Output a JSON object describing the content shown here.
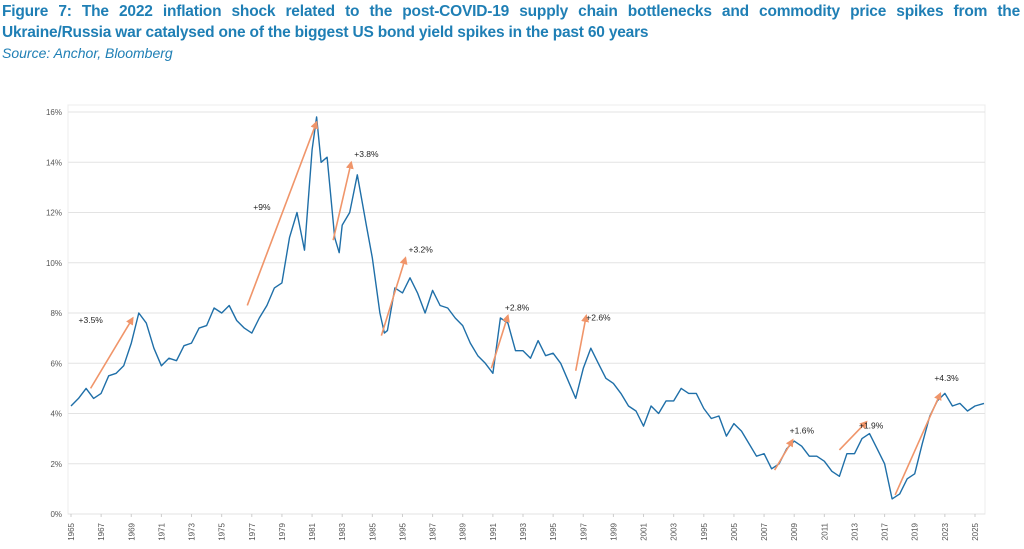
{
  "title": "Figure 7: The 2022 inflation shock related to the post-COVID-19 supply chain bottlenecks and commodity price spikes from the Ukraine/Russia war catalysed one of the biggest US bond yield spikes in the past 60 years",
  "source": "Source: Anchor, Bloomberg",
  "chart_data": {
    "type": "line",
    "title": "",
    "xlabel": "",
    "ylabel": "",
    "xlim": [
      1965,
      2025.7
    ],
    "ylim": [
      0,
      16
    ],
    "grid": "horizontal",
    "legend": "none",
    "colors": {
      "line": "#1f6fa8",
      "arrow": "#f0956a",
      "grid": "#e3e3e3"
    },
    "y_ticks": [
      "0%",
      "2%",
      "4%",
      "6%",
      "8%",
      "10%",
      "12%",
      "14%",
      "16%"
    ],
    "x_tick_labels": [
      "1965",
      "1967",
      "1969",
      "1971",
      "1973",
      "1975",
      "1977",
      "1979",
      "1981",
      "1983",
      "1985",
      "1995",
      "1987",
      "1989",
      "1991",
      "1993",
      "1995",
      "1997",
      "1999",
      "2001",
      "2003",
      "1995",
      "2005",
      "2007",
      "2009",
      "2011",
      "2013",
      "2017",
      "2019",
      "2023",
      "2025"
    ],
    "series": [
      {
        "x": [
          1965,
          1965.5,
          1966,
          1966.5,
          1967,
          1967.5,
          1968,
          1968.5,
          1969,
          1969.5,
          1970,
          1970.5,
          1971,
          1971.5,
          1972,
          1972.5,
          1973,
          1973.5,
          1974,
          1974.5,
          1975,
          1975.5,
          1976,
          1976.5,
          1977,
          1977.5,
          1978,
          1978.5,
          1979,
          1979.5,
          1980,
          1980.5,
          1981,
          1981.3,
          1981.6,
          1982,
          1982.5,
          1982.8,
          1983,
          1983.5,
          1984,
          1984.3,
          1984.6,
          1985,
          1985.5,
          1985.8,
          1986,
          1986.5,
          1987,
          1987.5,
          1988,
          1988.5,
          1989,
          1989.5,
          1990,
          1990.5,
          1991,
          1991.5,
          1992,
          1992.5,
          1993,
          1993.5,
          1994,
          1994.5,
          1995,
          1995.5,
          1996,
          1996.5,
          1997,
          1997.5,
          1998,
          1998.5,
          1999,
          1999.5,
          2000,
          2000.5,
          2001,
          2001.5,
          2002,
          2002.5,
          2003,
          2003.5,
          2004,
          2004.5,
          2005,
          2005.5,
          2006,
          2006.5,
          2007,
          2007.5,
          2008,
          2008.5,
          2009,
          2009.5,
          2010,
          2010.5,
          2011,
          2011.5,
          2012,
          2012.5,
          2013,
          2013.5,
          2014,
          2014.5,
          2015,
          2015.5,
          2016,
          2016.5,
          2017,
          2017.5,
          2018,
          2018.5,
          2019,
          2019.5,
          2020,
          2020.5,
          2021,
          2021.5,
          2022,
          2022.5,
          2023,
          2023.5,
          2024,
          2024.5,
          2025,
          2025.6
        ],
        "y": [
          4.3,
          4.6,
          5.0,
          4.6,
          4.8,
          5.5,
          5.6,
          5.9,
          6.8,
          8.0,
          7.6,
          6.6,
          5.9,
          6.2,
          6.1,
          6.7,
          6.8,
          7.4,
          7.5,
          8.2,
          8.0,
          8.3,
          7.7,
          7.4,
          7.2,
          7.8,
          8.3,
          9.0,
          9.2,
          11.0,
          12.0,
          10.5,
          14.5,
          15.8,
          14.0,
          14.2,
          11.0,
          10.4,
          11.5,
          12.0,
          13.5,
          12.5,
          11.5,
          10.2,
          8.0,
          7.2,
          7.3,
          9.0,
          8.8,
          9.4,
          8.8,
          8.0,
          8.9,
          8.3,
          8.2,
          7.8,
          7.5,
          6.8,
          6.3,
          6.0,
          5.6,
          7.8,
          7.6,
          6.5,
          6.5,
          6.2,
          6.9,
          6.3,
          6.4,
          6.0,
          5.3,
          4.6,
          5.8,
          6.6,
          6.0,
          5.4,
          5.2,
          4.8,
          4.3,
          4.1,
          3.5,
          4.3,
          4.0,
          4.5,
          4.5,
          5.0,
          4.8,
          4.8,
          4.2,
          3.8,
          3.9,
          3.1,
          3.6,
          3.3,
          2.8,
          2.3,
          2.4,
          1.8,
          2.0,
          2.6,
          2.9,
          2.7,
          2.3,
          2.3,
          2.1,
          1.7,
          1.5,
          2.4,
          2.4,
          3.0,
          3.2,
          2.6,
          2.0,
          0.6,
          0.8,
          1.4,
          1.6,
          2.8,
          3.9,
          4.5,
          4.8,
          4.3,
          4.4,
          4.1,
          4.3,
          4.4
        ]
      }
    ],
    "annotations": [
      {
        "label": "+3.5%",
        "from": [
          1966.3,
          5.0
        ],
        "to": [
          1969.1,
          7.8
        ],
        "at": [
          1965.5,
          7.6
        ]
      },
      {
        "label": "+9%",
        "from": [
          1976.7,
          8.3
        ],
        "to": [
          1981.3,
          15.6
        ],
        "at": [
          1977.1,
          12.1
        ]
      },
      {
        "label": "+3.8%",
        "from": [
          1982.4,
          10.9
        ],
        "to": [
          1983.6,
          14.0
        ],
        "at": [
          1983.8,
          14.2
        ]
      },
      {
        "label": "+3.2%",
        "from": [
          1985.6,
          7.1
        ],
        "to": [
          1987.2,
          10.2
        ],
        "at": [
          1987.4,
          10.4
        ]
      },
      {
        "label": "+2.8%",
        "from": [
          1992.9,
          5.8
        ],
        "to": [
          1994.0,
          7.9
        ],
        "at": [
          1993.8,
          8.1
        ]
      },
      {
        "label": "+2.6%",
        "from": [
          1998.5,
          5.7
        ],
        "to": [
          1999.2,
          7.9
        ],
        "at": [
          1999.2,
          7.7
        ]
      },
      {
        "label": "+1.6%",
        "from": [
          2011.7,
          1.75
        ],
        "to": [
          2012.9,
          2.95
        ],
        "at": [
          2012.7,
          3.2
        ]
      },
      {
        "label": "+1.9%",
        "from": [
          2016.0,
          2.55
        ],
        "to": [
          2017.8,
          3.67
        ],
        "at": [
          2017.3,
          3.4
        ]
      },
      {
        "label": "+4.3%",
        "from": [
          2019.7,
          0.76
        ],
        "to": [
          2022.7,
          4.8
        ],
        "at": [
          2022.3,
          5.3
        ]
      }
    ]
  }
}
